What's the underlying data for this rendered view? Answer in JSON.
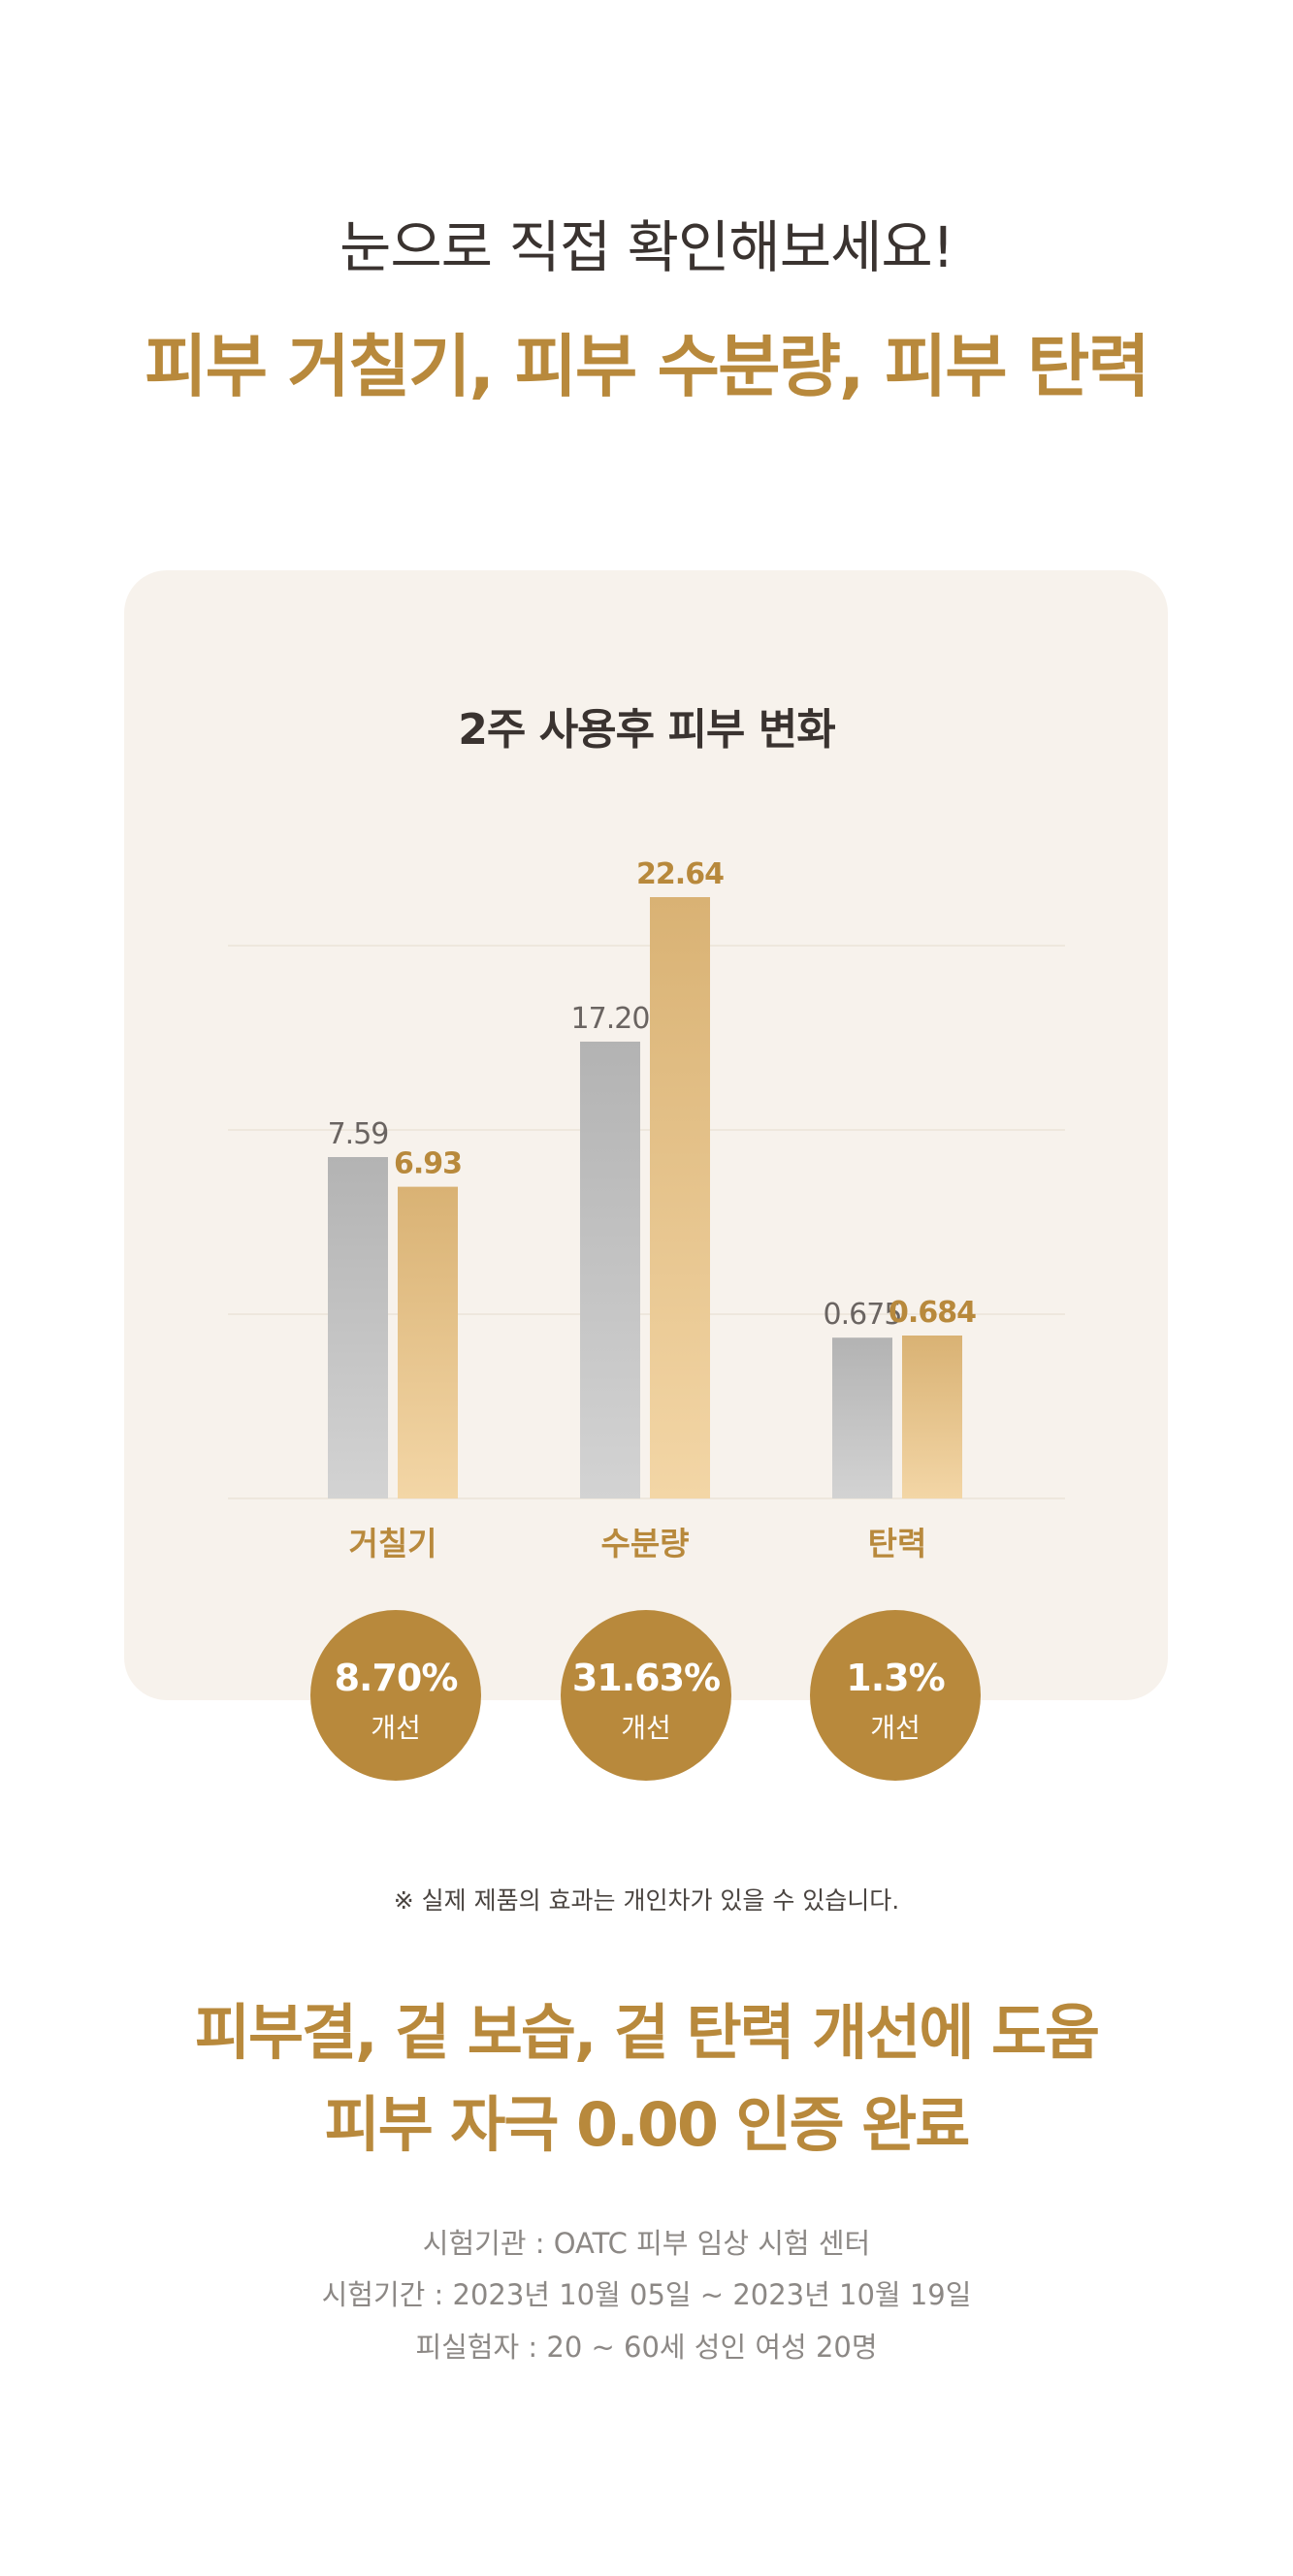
{
  "header": {
    "headline": "눈으로 직접 확인해보세요!",
    "subhead": "피부 거칠기, 피부 수분량, 피부 탄력"
  },
  "chart_data": {
    "type": "bar",
    "title": "2주 사용후 피부 변화",
    "categories": [
      "거칠기",
      "수분량",
      "탄력"
    ],
    "series": [
      {
        "values": [
          7.59,
          17.2,
          0.675
        ],
        "labels": [
          "7.59",
          "17.20",
          "0.675"
        ],
        "color": "#c4c4c4"
      },
      {
        "values": [
          6.93,
          22.64,
          0.684
        ],
        "labels": [
          "6.93",
          "22.64",
          "0.684"
        ],
        "color": "#ecc88e"
      }
    ],
    "grid": true,
    "legend": "none"
  },
  "improvements": [
    {
      "percent": "8.70%",
      "label": "개선"
    },
    {
      "percent": "31.63%",
      "label": "개선"
    },
    {
      "percent": "1.3%",
      "label": "개선"
    }
  ],
  "note": "※ 실제 제품의 효과는 개인차가 있을 수 있습니다.",
  "claims": [
    "피부결, 겉 보습, 겉 탄력 개선에 도움",
    "피부 자극 0.00 인증 완료"
  ],
  "test_info": [
    "시험기관 :  OATC 피부 임상 시험 센터",
    "시험기간 : 2023년 10월 05일 ~ 2023년 10월 19일",
    "피실험자 : 20 ~  60세 성인 여성 20명"
  ],
  "colors": {
    "accent": "#b8893c",
    "card_background": "#f7f2ec",
    "before_bar": "#c4c4c4",
    "after_bar": "#ecc88e"
  }
}
